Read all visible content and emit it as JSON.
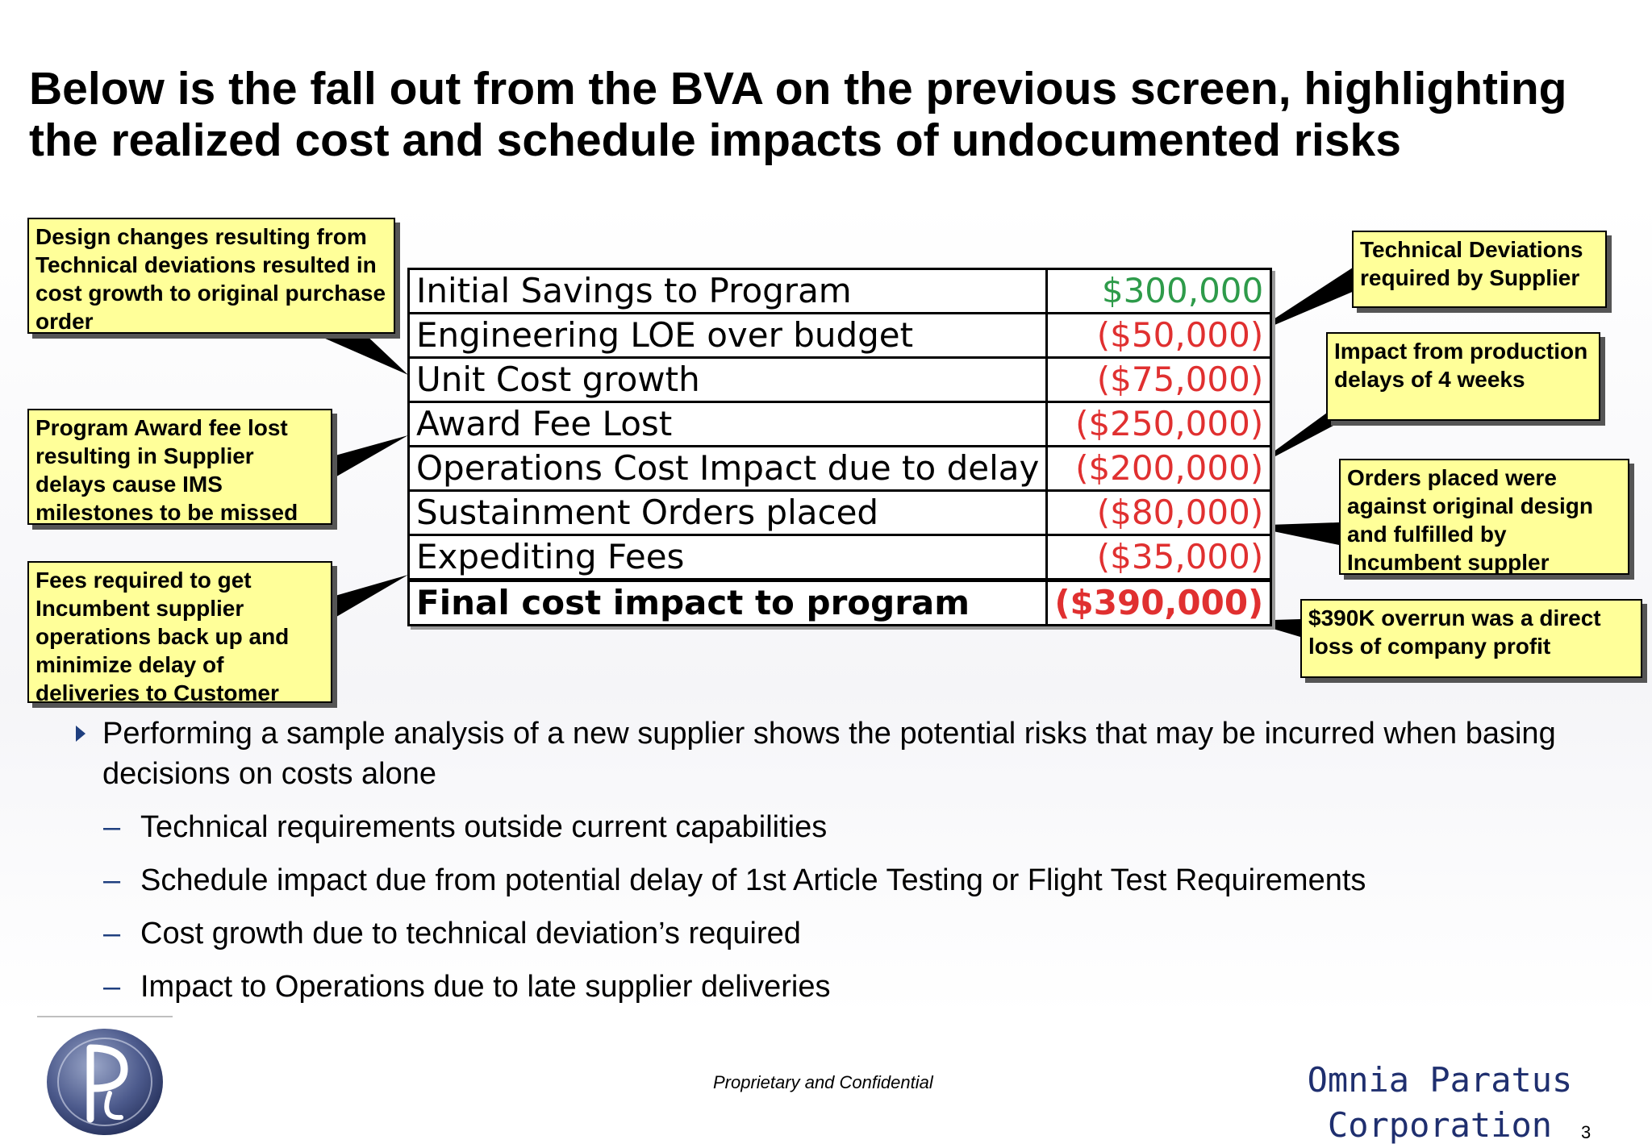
{
  "title": "Below is the fall out from the BVA on the previous screen, highlighting the realized cost and schedule impacts of undocumented risks",
  "cost_table": {
    "rows": [
      {
        "label": "Initial Savings to Program",
        "value": "$300,000",
        "value_color": "#2e9b4a"
      },
      {
        "label": "Engineering LOE over budget",
        "value": "($50,000)",
        "value_color": "#e03030"
      },
      {
        "label": "Unit Cost growth",
        "value": "($75,000)",
        "value_color": "#e03030"
      },
      {
        "label": "Award Fee Lost",
        "value": "($250,000)",
        "value_color": "#e03030"
      },
      {
        "label": "Operations Cost Impact due to delay",
        "value": "($200,000)",
        "value_color": "#e03030"
      },
      {
        "label": "Sustainment Orders placed",
        "value": "($80,000)",
        "value_color": "#e03030"
      },
      {
        "label": "Expediting Fees",
        "value": "($35,000)",
        "value_color": "#e03030"
      }
    ],
    "total": {
      "label": "Final cost impact to program",
      "value": "($390,000)",
      "value_color": "#e03030"
    }
  },
  "callouts": {
    "design_changes": "Design changes resulting from Technical deviations resulted in cost growth to original purchase order",
    "award_fee": "Program Award fee lost resulting in Supplier delays cause IMS milestones to be missed",
    "fees_required": "Fees required to get Incumbent supplier operations back up and minimize delay of deliveries to Customer",
    "technical_deviations": "Technical Deviations required by Supplier",
    "production_delays": "Impact from production delays of 4 weeks",
    "orders_placed": "Orders placed were against original design and fulfilled by Incumbent suppler",
    "overrun": "$390K overrun was a direct loss of company profit"
  },
  "bullets": {
    "main": "Performing a sample analysis of a new supplier shows the potential risks that may be incurred when basing decisions on costs alone",
    "subs": [
      "Technical requirements outside current capabilities",
      "Schedule impact due from potential delay of 1st Article Testing or Flight Test Requirements",
      "Cost growth due to technical deviation’s required",
      "Impact to Operations due to late supplier deliveries"
    ]
  },
  "footer": {
    "note": "Proprietary and Confidential",
    "company": "Omnia Paratus Corporation",
    "page_number": "3",
    "logo_icon": "op-monogram-logo"
  }
}
